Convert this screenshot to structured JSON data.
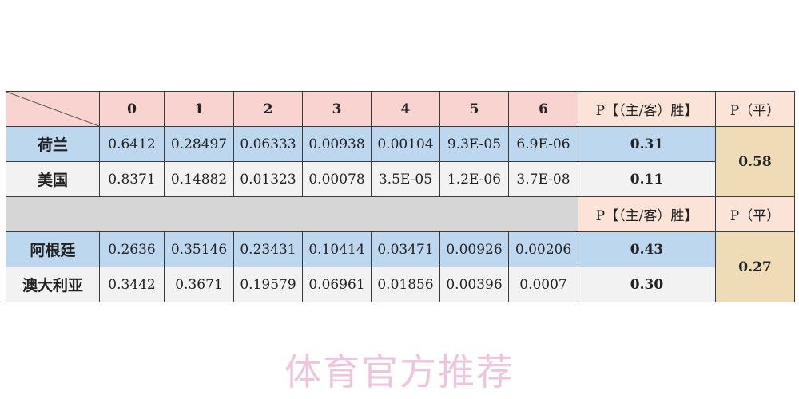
{
  "header": {
    "goals": [
      "0",
      "1",
      "2",
      "3",
      "4",
      "5",
      "6"
    ],
    "p_win": "P【（主/客）胜】",
    "p_draw": "P（平）"
  },
  "groups": [
    {
      "teams": [
        {
          "name": "荷兰",
          "probs": [
            "0.6412",
            "0.28497",
            "0.06333",
            "0.00938",
            "0.00104",
            "9.3E-05",
            "6.9E-06"
          ],
          "p_win": "0.31"
        },
        {
          "name": "美国",
          "probs": [
            "0.8371",
            "0.14882",
            "0.01323",
            "0.00078",
            "3.5E-05",
            "1.2E-06",
            "3.7E-08"
          ],
          "p_win": "0.11"
        }
      ],
      "p_draw": "0.58"
    },
    {
      "teams": [
        {
          "name": "阿根廷",
          "probs": [
            "0.2636",
            "0.35146",
            "0.23431",
            "0.10414",
            "0.03471",
            "0.00926",
            "0.00206"
          ],
          "p_win": "0.43"
        },
        {
          "name": "澳大利亚",
          "probs": [
            "0.3442",
            "0.3671",
            "0.19579",
            "0.06961",
            "0.01856",
            "0.00396",
            "0.0007"
          ],
          "p_win": "0.30"
        }
      ],
      "p_draw": "0.27"
    }
  ],
  "watermark": "体育官方推荐",
  "colors": {
    "header": "#f8d3d0",
    "row_blue": "#bdd7ee",
    "row_light": "#f2f2f2",
    "separator": "#d6d6d6",
    "draw_cell": "#efdcb6"
  }
}
